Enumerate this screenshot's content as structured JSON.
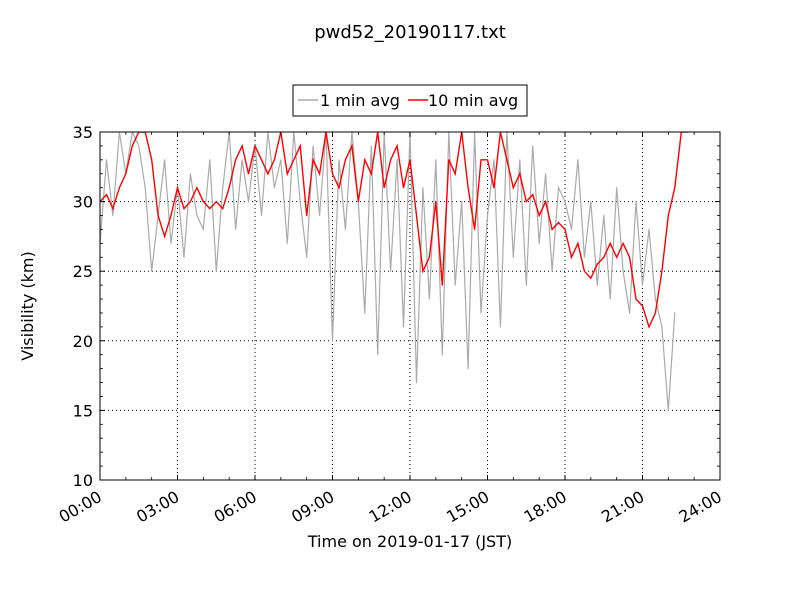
{
  "chart_data": {
    "type": "line",
    "title": "pwd52_20190117.txt",
    "xlabel": "Time on 2019-01-17 (JST)",
    "ylabel": "Visibility (km)",
    "xlim": [
      "00:00",
      "24:00"
    ],
    "ylim": [
      10,
      35
    ],
    "x_ticks": [
      "00:00",
      "03:00",
      "06:00",
      "09:00",
      "12:00",
      "15:00",
      "18:00",
      "21:00",
      "24:00"
    ],
    "y_ticks": [
      "10",
      "15",
      "20",
      "25",
      "30",
      "35"
    ],
    "grid": true,
    "legend_position": "top-center, above plot",
    "series": [
      {
        "name": "1 min avg",
        "color": "#aaaaaa",
        "x_hours": [
          0.0,
          0.25,
          0.5,
          0.75,
          1.0,
          1.25,
          1.5,
          1.75,
          2.0,
          2.25,
          2.5,
          2.75,
          3.0,
          3.25,
          3.5,
          3.75,
          4.0,
          4.25,
          4.5,
          4.75,
          5.0,
          5.25,
          5.5,
          5.75,
          6.0,
          6.25,
          6.5,
          6.75,
          7.0,
          7.25,
          7.5,
          7.75,
          8.0,
          8.25,
          8.5,
          8.75,
          9.0,
          9.25,
          9.5,
          9.75,
          10.0,
          10.25,
          10.5,
          10.75,
          11.0,
          11.25,
          11.5,
          11.75,
          12.0,
          12.25,
          12.5,
          12.75,
          13.0,
          13.25,
          13.5,
          13.75,
          14.0,
          14.25,
          14.5,
          14.75,
          15.0,
          15.25,
          15.5,
          15.75,
          16.0,
          16.25,
          16.5,
          16.75,
          17.0,
          17.25,
          17.5,
          17.75,
          18.0,
          18.25,
          18.5,
          18.75,
          19.0,
          19.25,
          19.5,
          19.75,
          20.0,
          20.25,
          20.5,
          20.75,
          21.0,
          21.25,
          21.5,
          21.75,
          22.0,
          22.25
        ],
        "values": [
          27,
          33,
          29,
          35,
          32,
          35,
          34,
          31,
          25,
          29,
          33,
          27,
          31,
          26,
          32,
          29,
          28,
          33,
          25,
          31,
          35,
          28,
          33,
          30,
          34,
          29,
          35,
          31,
          33,
          27,
          35,
          30,
          26,
          34,
          29,
          35,
          20,
          33,
          28,
          35,
          30,
          22,
          34,
          19,
          35,
          25,
          33,
          21,
          35,
          17,
          31,
          23,
          33,
          19,
          35,
          24,
          30,
          18,
          35,
          22,
          29,
          33,
          21,
          35,
          26,
          33,
          24,
          34,
          27,
          32,
          25,
          31,
          30,
          28,
          33,
          26,
          30,
          24,
          29,
          23,
          31,
          25,
          22,
          30,
          24,
          28,
          23,
          21,
          15,
          22
        ]
      },
      {
        "name": "10 min avg",
        "color": "#ff0000",
        "x_hours": [
          0.0,
          0.25,
          0.5,
          0.75,
          1.0,
          1.25,
          1.5,
          1.75,
          2.0,
          2.25,
          2.5,
          2.75,
          3.0,
          3.25,
          3.5,
          3.75,
          4.0,
          4.25,
          4.5,
          4.75,
          5.0,
          5.25,
          5.5,
          5.75,
          6.0,
          6.25,
          6.5,
          6.75,
          7.0,
          7.25,
          7.5,
          7.75,
          8.0,
          8.25,
          8.5,
          8.75,
          9.0,
          9.25,
          9.5,
          9.75,
          10.0,
          10.25,
          10.5,
          10.75,
          11.0,
          11.25,
          11.5,
          11.75,
          12.0,
          12.25,
          12.5,
          12.75,
          13.0,
          13.25,
          13.5,
          13.75,
          14.0,
          14.25,
          14.5,
          14.75,
          15.0,
          15.25,
          15.5,
          15.75,
          16.0,
          16.25,
          16.5,
          16.75,
          17.0,
          17.25,
          17.5,
          17.75,
          18.0,
          18.25,
          18.5,
          18.75,
          19.0,
          19.25,
          19.5,
          19.75,
          20.0,
          20.25,
          20.5,
          20.75,
          21.0,
          21.25,
          21.5,
          21.75,
          22.0,
          22.25,
          22.5,
          22.75
        ],
        "values": [
          30,
          30.5,
          29.5,
          31,
          32,
          34,
          35,
          35,
          33,
          29,
          27.5,
          29,
          31,
          29.5,
          30,
          31,
          30,
          29.5,
          30,
          29.5,
          31,
          33,
          34,
          32,
          34,
          33,
          32,
          33,
          35,
          32,
          33,
          34,
          29,
          33,
          32,
          35,
          32,
          31,
          33,
          34,
          30,
          33,
          32,
          35,
          31,
          33,
          34,
          31,
          33,
          29,
          25,
          26,
          30,
          24,
          33,
          32,
          35,
          31,
          28,
          33,
          33,
          31,
          35,
          33,
          31,
          32,
          30,
          30.5,
          29,
          30,
          28,
          28.5,
          28,
          26,
          27,
          25,
          24.5,
          25.5,
          26,
          27,
          26,
          27,
          26,
          23,
          22.5,
          21,
          22,
          25,
          29,
          31,
          35,
          35
        ]
      }
    ]
  }
}
